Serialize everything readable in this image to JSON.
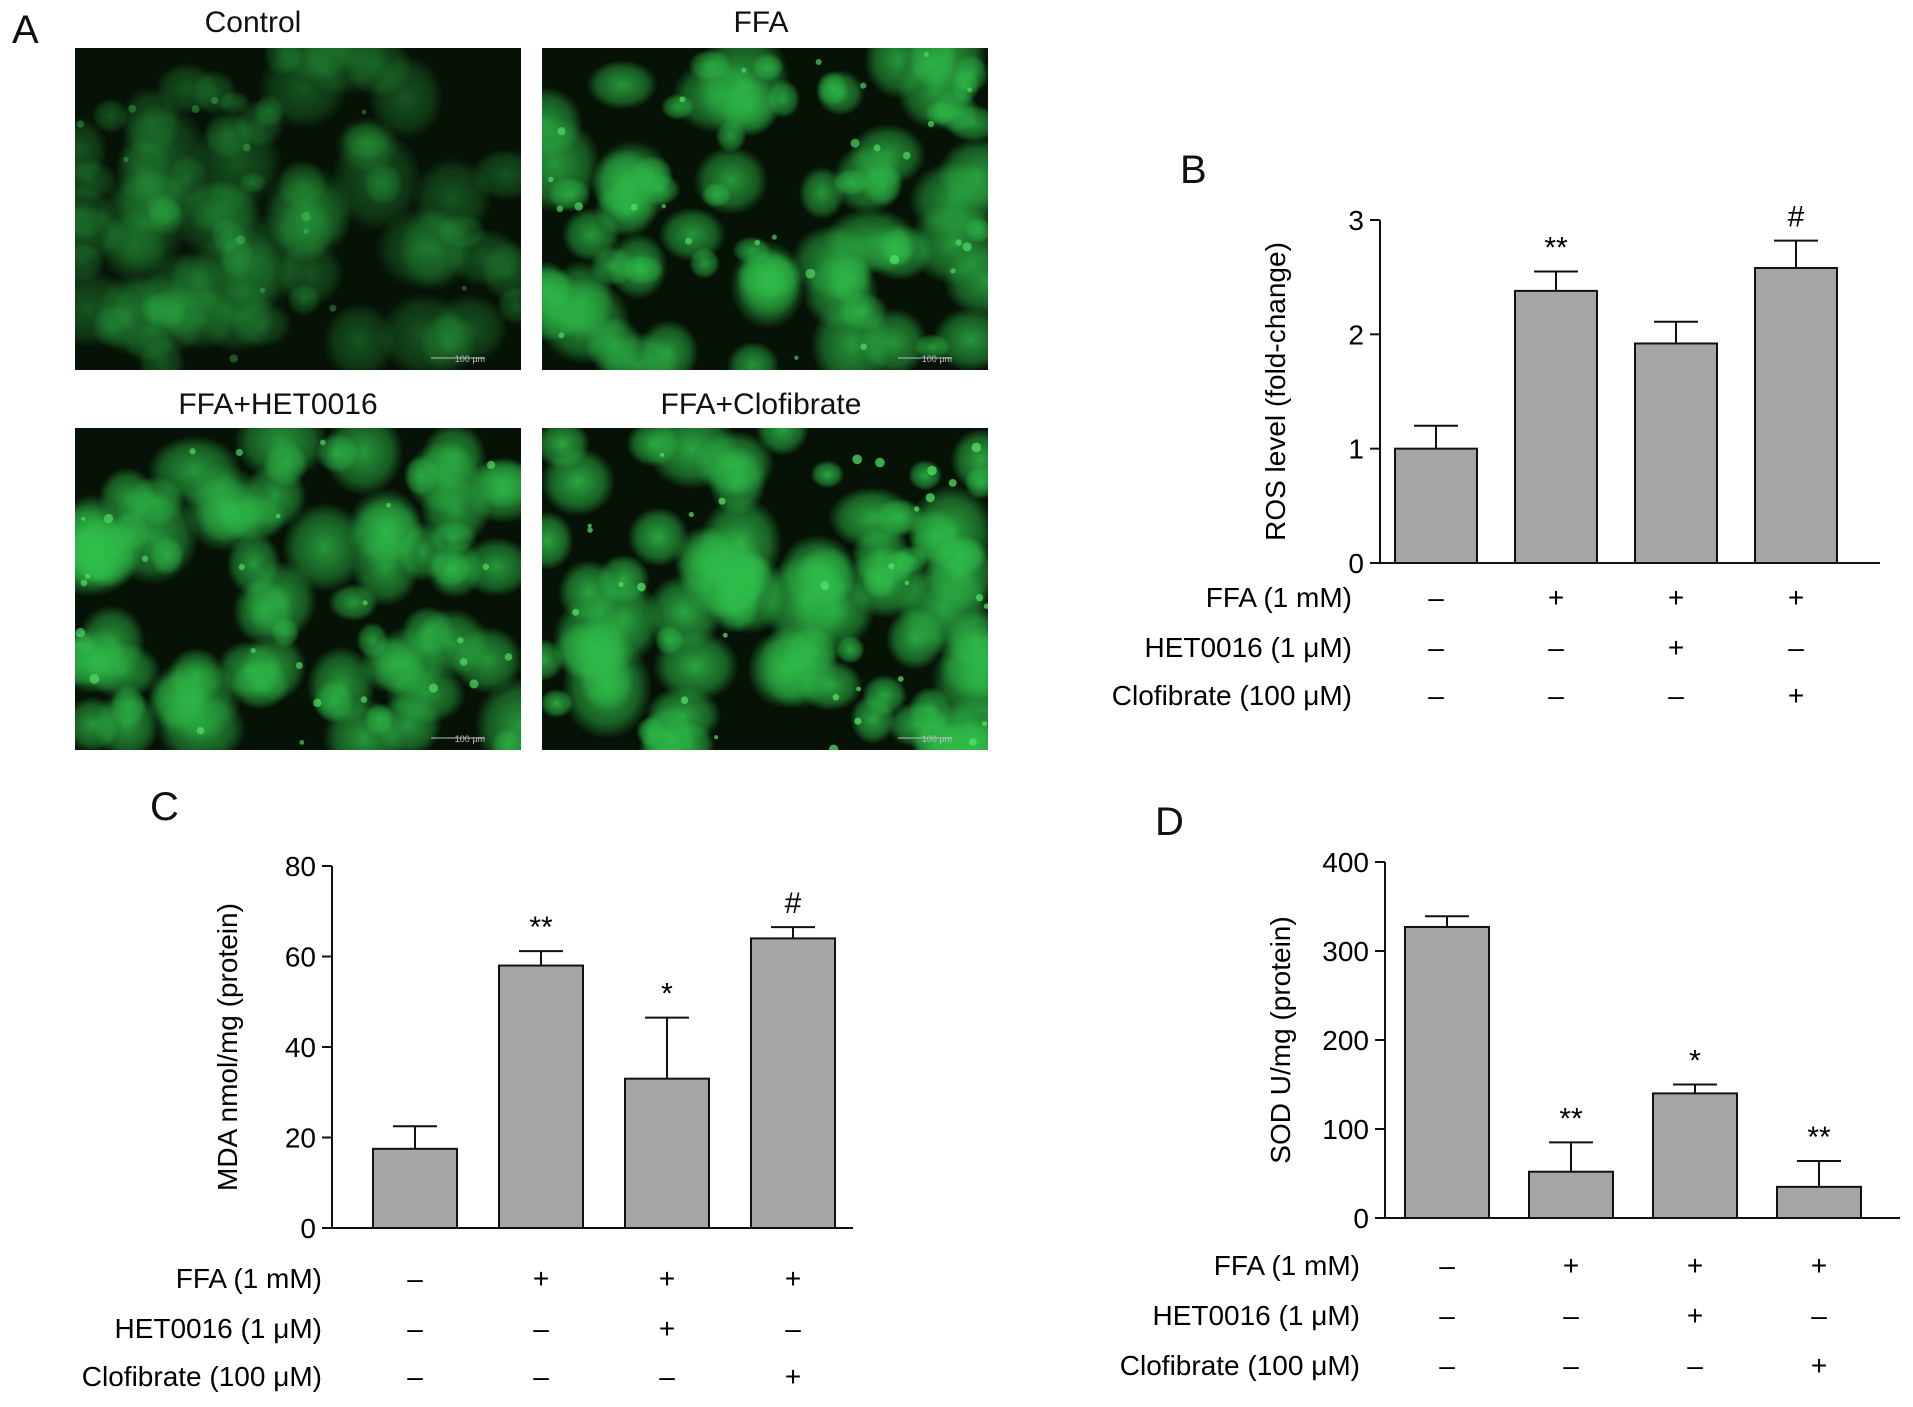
{
  "panels": {
    "A": {
      "letter": "A",
      "images": [
        {
          "label": "Control",
          "scale_bar": "100 μm",
          "intensity": 0.45
        },
        {
          "label": "FFA",
          "scale_bar": "100 μm",
          "intensity": 0.9
        },
        {
          "label": "FFA+HET0016",
          "scale_bar": "100 μm",
          "intensity": 0.9
        },
        {
          "label": "FFA+Clofibrate",
          "scale_bar": "100 μm",
          "intensity": 1.0
        }
      ],
      "fluorescence_color": "#2fbf4a"
    },
    "B": {
      "letter": "B"
    },
    "C": {
      "letter": "C"
    },
    "D": {
      "letter": "D"
    }
  },
  "colors": {
    "bar_fill": "#a6a6a6",
    "bar_stroke": "#111111"
  },
  "chart_data": [
    {
      "panel": "B",
      "type": "bar",
      "ylabel": "ROS level (fold-change)",
      "ylim": [
        0,
        3
      ],
      "yticks": [
        0,
        1,
        2,
        3
      ],
      "values": [
        1.0,
        2.38,
        1.92,
        2.58
      ],
      "errors": [
        0.2,
        0.17,
        0.19,
        0.24
      ],
      "annotations": [
        "",
        "**",
        "",
        "#"
      ],
      "conditions": [
        {
          "label": "FFA (1 mM)",
          "signs": [
            "–",
            "+",
            "+",
            "+"
          ]
        },
        {
          "label": "HET0016 (1 μM)",
          "signs": [
            "–",
            "–",
            "+",
            "–"
          ]
        },
        {
          "label": "Clofibrate (100 μM)",
          "signs": [
            "–",
            "–",
            "–",
            "+"
          ]
        }
      ]
    },
    {
      "panel": "C",
      "type": "bar",
      "ylabel": "MDA nmol/mg (protein)",
      "ylim": [
        0,
        80
      ],
      "yticks": [
        0,
        20,
        40,
        60,
        80
      ],
      "values": [
        17.5,
        58,
        33,
        64
      ],
      "errors": [
        5,
        3.2,
        13.5,
        2.5
      ],
      "annotations": [
        "",
        "**",
        "*",
        "#"
      ],
      "conditions": [
        {
          "label": "FFA (1 mM)",
          "signs": [
            "–",
            "+",
            "+",
            "+"
          ]
        },
        {
          "label": "HET0016 (1 μM)",
          "signs": [
            "–",
            "–",
            "+",
            "–"
          ]
        },
        {
          "label": "Clofibrate (100 μM)",
          "signs": [
            "–",
            "–",
            "–",
            "+"
          ]
        }
      ]
    },
    {
      "panel": "D",
      "type": "bar",
      "ylabel": "SOD U/mg (protein)",
      "ylim": [
        0,
        400
      ],
      "yticks": [
        0,
        100,
        200,
        300,
        400
      ],
      "values": [
        327,
        52,
        140,
        35
      ],
      "errors": [
        12,
        33,
        10,
        29
      ],
      "annotations": [
        "",
        "**",
        "*",
        "**"
      ],
      "conditions": [
        {
          "label": "FFA (1 mM)",
          "signs": [
            "–",
            "+",
            "+",
            "+"
          ]
        },
        {
          "label": "HET0016 (1 μM)",
          "signs": [
            "–",
            "–",
            "+",
            "–"
          ]
        },
        {
          "label": "Clofibrate (100 μM)",
          "signs": [
            "–",
            "–",
            "–",
            "+"
          ]
        }
      ]
    }
  ]
}
